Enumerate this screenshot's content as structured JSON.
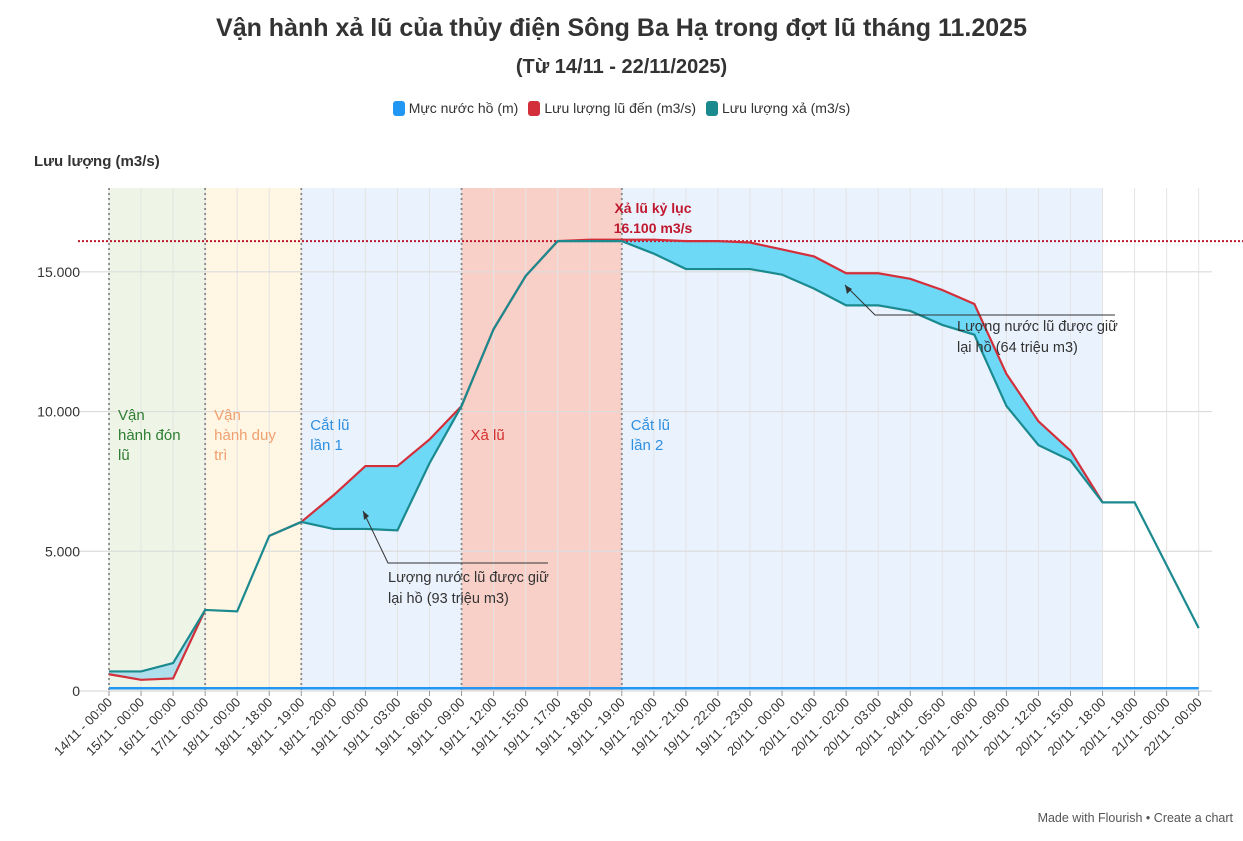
{
  "chart_data": {
    "type": "line",
    "title": "Vận hành xả lũ của thủy điện Sông Ba Hạ trong đợt lũ tháng 11.2025",
    "subtitle": "(Từ 14/11 - 22/11/2025)",
    "ylabel": "Lưu lượng (m3/s)",
    "xlabel": "",
    "ylim": [
      0,
      18000
    ],
    "yticks": [
      0,
      5000,
      10000,
      15000
    ],
    "ytick_labels": [
      "0",
      "5.000",
      "10.000",
      "15.000"
    ],
    "grid": true,
    "legend_position": "top",
    "categories": [
      "14/11 - 00:00",
      "15/11 - 00:00",
      "16/11 - 00:00",
      "17/11 - 00:00",
      "18/11 - 00:00",
      "18/11 - 18:00",
      "18/11 - 19:00",
      "18/11 - 20:00",
      "19/11 - 00:00",
      "19/11 - 03:00",
      "19/11 - 06:00",
      "19/11 - 09:00",
      "19/11 - 12:00",
      "19/11 - 15:00",
      "19/11 - 17:00",
      "19/11 - 18:00",
      "19/11 - 19:00",
      "19/11 - 20:00",
      "19/11 - 21:00",
      "19/11 - 22:00",
      "19/11 - 23:00",
      "20/11 - 00:00",
      "20/11 - 01:00",
      "20/11 - 02:00",
      "20/11 - 03:00",
      "20/11 - 04:00",
      "20/11 - 05:00",
      "20/11 - 06:00",
      "20/11 - 09:00",
      "20/11 - 12:00",
      "20/11 - 15:00",
      "20/11 - 18:00",
      "20/11 - 19:00",
      "21/11 - 00:00",
      "22/11 - 00:00"
    ],
    "series": [
      {
        "name": "Mực nước hồ (m)",
        "color": "#2196f3",
        "values": [
          100,
          100,
          100,
          100,
          100,
          100,
          100,
          100,
          100,
          100,
          100,
          100,
          100,
          100,
          100,
          100,
          100,
          100,
          100,
          100,
          100,
          100,
          100,
          100,
          100,
          100,
          100,
          100,
          100,
          100,
          100,
          100,
          100,
          100,
          100
        ]
      },
      {
        "name": "Lưu lượng lũ đến (m3/s)",
        "color": "#d32f3a",
        "values": [
          600,
          400,
          450,
          2900,
          null,
          5550,
          6050,
          7000,
          8050,
          8050,
          9000,
          10200,
          12950,
          14850,
          16100,
          16150,
          16150,
          16150,
          16100,
          16100,
          16050,
          15800,
          15550,
          14950,
          14950,
          14750,
          14350,
          13850,
          11350,
          9650,
          8600,
          6750,
          null,
          null,
          null
        ]
      },
      {
        "name": "Lưu lượng xả (m3/s)",
        "color": "#1a8a8f",
        "values": [
          700,
          700,
          1000,
          2900,
          2850,
          5550,
          6050,
          5800,
          5800,
          5750,
          8150,
          10200,
          12950,
          14850,
          16100,
          16100,
          16100,
          15650,
          15100,
          15100,
          15100,
          14900,
          14400,
          13800,
          13800,
          13600,
          13100,
          12750,
          10200,
          8800,
          8250,
          6750,
          6750,
          4500,
          2250
        ]
      }
    ],
    "bands": [
      {
        "label": "Vận hành đón lũ",
        "color": "#2e7d32",
        "fill": "#eef5e6"
      },
      {
        "label": "Vận hành duy trì",
        "color": "#f0a070",
        "fill": "#fff6e3"
      },
      {
        "label": "Cắt lũ lần 1",
        "color": "#2f8fe0",
        "fill": "#eaf2fd"
      },
      {
        "label": "Xả lũ",
        "color": "#d32f2f",
        "fill": "#f8d0c8"
      },
      {
        "label": "Cắt lũ lần 2",
        "color": "#2f8fe0",
        "fill": "#eaf2fd"
      }
    ],
    "reference_line": {
      "value": 16100,
      "label_line1": "Xả lũ kỷ lục",
      "label_line2": "16.100 m3/s",
      "color": "#c0182e"
    },
    "annotations": [
      {
        "line1": "Lượng nước lũ được giữ",
        "line2": "lại hồ (93 triệu m3)"
      },
      {
        "line1": "Lượng nước lũ được giữ",
        "line2": "lại hồ (64 triệu m3)"
      }
    ],
    "retained_fill": "#6ed8f7"
  },
  "footer": "Made with Flourish • Create a chart"
}
